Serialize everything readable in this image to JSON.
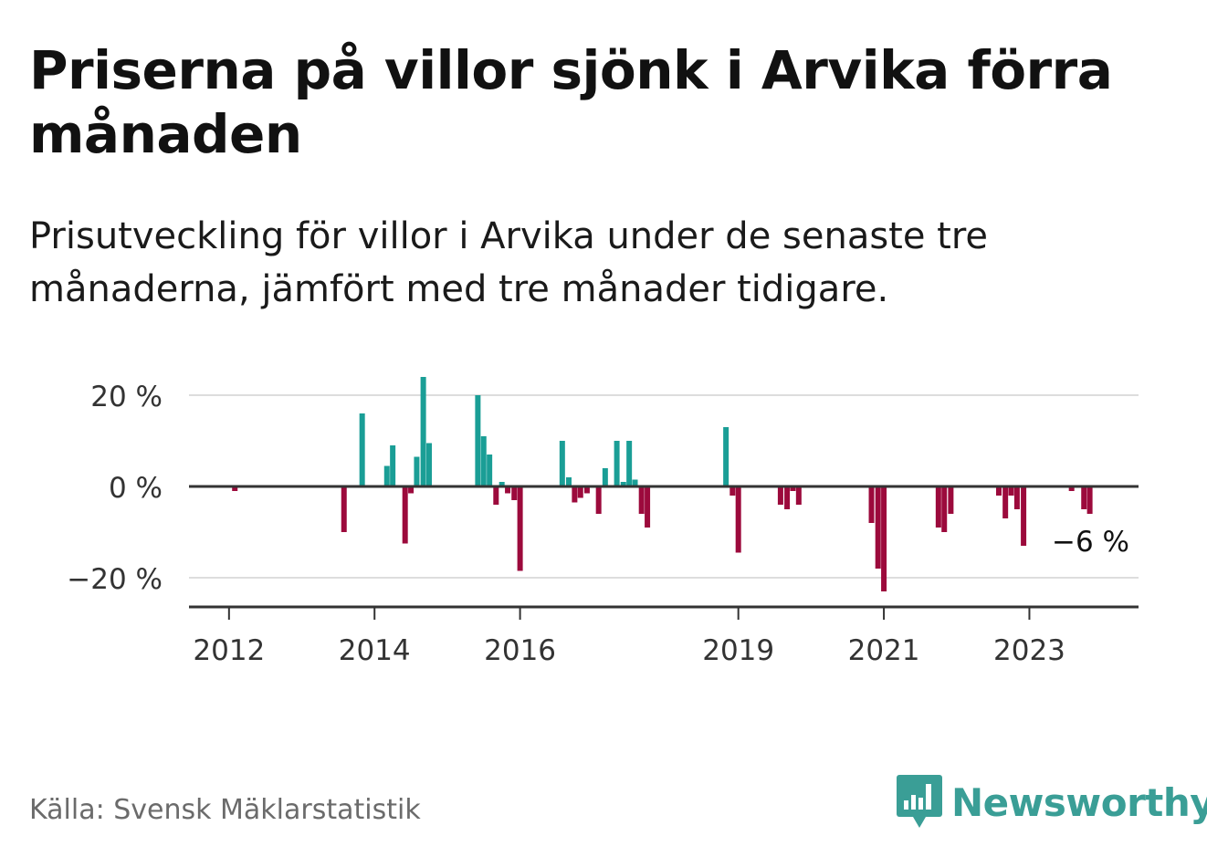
{
  "header": {
    "title": "Priserna på villor sjönk i Arvika förra månaden",
    "subtitle": "Prisutveckling för villor i Arvika under de senaste tre månaderna, jämfört med tre månader tidigare."
  },
  "footer": {
    "source": "Källa: Svensk Mäklarstatistik",
    "brand": "Newsworthy"
  },
  "colors": {
    "positive": "#1a9e96",
    "negative": "#9c0a3c",
    "grid": "#dddddd",
    "axis": "#333333",
    "brand": "#3a9e96"
  },
  "chart_data": {
    "type": "bar",
    "title": "Priserna på villor sjönk i Arvika förra månaden",
    "subtitle": "Prisutveckling för villor i Arvika under de senaste tre månaderna, jämfört med tre månader tidigare.",
    "ylim": [
      -26,
      24
    ],
    "grid": true,
    "y_ticks": [
      {
        "value": 20,
        "label": "20 %"
      },
      {
        "value": 0,
        "label": "0 %"
      },
      {
        "value": -20,
        "label": "−20 %"
      }
    ],
    "x_ticks": [
      {
        "value": 2012.0,
        "label": "2012"
      },
      {
        "value": 2014.0,
        "label": "2014"
      },
      {
        "value": 2016.0,
        "label": "2016"
      },
      {
        "value": 2019.0,
        "label": "2019"
      },
      {
        "value": 2021.0,
        "label": "2021"
      },
      {
        "value": 2023.0,
        "label": "2023"
      }
    ],
    "xlim": [
      2011.45,
      2024.5
    ],
    "annotation": {
      "x": 2024.17,
      "y": -6,
      "label": "−6 %"
    },
    "x": [
      2012.08,
      2013.58,
      2013.83,
      2014.17,
      2014.25,
      2014.42,
      2014.5,
      2014.58,
      2014.67,
      2014.75,
      2015.42,
      2015.5,
      2015.58,
      2015.67,
      2015.75,
      2015.83,
      2015.92,
      2016.0,
      2016.58,
      2016.67,
      2016.75,
      2016.83,
      2016.92,
      2017.08,
      2017.17,
      2017.33,
      2017.42,
      2017.5,
      2017.58,
      2017.67,
      2017.75,
      2018.83,
      2018.92,
      2019.0,
      2019.58,
      2019.67,
      2019.75,
      2019.83,
      2020.83,
      2020.92,
      2021.0,
      2021.75,
      2021.83,
      2021.92,
      2022.58,
      2022.67,
      2022.75,
      2022.83,
      2022.92,
      2023.58,
      2023.75,
      2023.83
    ],
    "values": [
      -1,
      -10,
      16,
      4.5,
      9,
      -12.5,
      -1.5,
      6.5,
      24,
      9.5,
      20,
      11,
      7,
      -4,
      1,
      -1.5,
      -3,
      -18.5,
      10,
      2,
      -3.5,
      -2.5,
      -1.5,
      -6,
      4,
      10,
      1,
      10,
      1.5,
      -6,
      -9,
      13,
      -2,
      -14.5,
      -4,
      -5,
      -1,
      -4,
      -8,
      -18,
      -23,
      -9,
      -10,
      -6,
      -2,
      -7,
      -2,
      -5,
      -13,
      -1,
      -5,
      -6
    ]
  }
}
